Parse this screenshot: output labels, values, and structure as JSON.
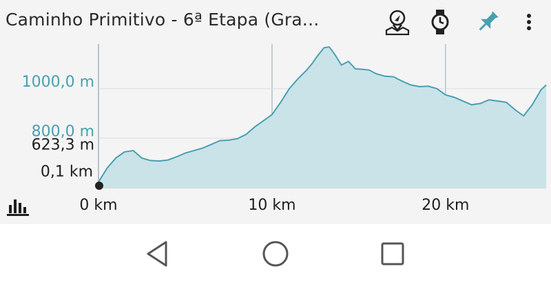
{
  "header": {
    "title": "Caminho Primitivo - 6ª Etapa (Gra...",
    "icons": [
      "map-navigation-icon",
      "watch-icon",
      "pin-icon",
      "more-vert-icon"
    ],
    "accent_color": "#4a9fb0"
  },
  "readout": {
    "elevation": "623,3 m",
    "distance": "0,1 km"
  },
  "chart_data": {
    "type": "area",
    "x": [
      0,
      0.5,
      1,
      1.5,
      2,
      2.5,
      3,
      3.5,
      4,
      4.5,
      5,
      5.5,
      6,
      6.5,
      7,
      7.5,
      8,
      8.5,
      9,
      9.5,
      10,
      10.5,
      11,
      11.5,
      12,
      12.3,
      12.6,
      13,
      13.3,
      13.6,
      14,
      14.4,
      14.8,
      15.2,
      15.6,
      16,
      16.5,
      17,
      17.5,
      18,
      18.5,
      19,
      19.5,
      20,
      20.5,
      21,
      21.5,
      22,
      22.5,
      23,
      23.5,
      24,
      24.5,
      25,
      25.5,
      25.8
    ],
    "values": [
      623,
      680,
      720,
      745,
      750,
      720,
      710,
      708,
      712,
      725,
      740,
      750,
      760,
      775,
      790,
      792,
      798,
      815,
      845,
      870,
      895,
      945,
      1000,
      1040,
      1075,
      1100,
      1130,
      1165,
      1168,
      1140,
      1095,
      1110,
      1080,
      1078,
      1075,
      1060,
      1050,
      1048,
      1030,
      1015,
      1008,
      1010,
      1000,
      975,
      965,
      950,
      935,
      940,
      955,
      950,
      945,
      915,
      890,
      935,
      995,
      1015
    ],
    "ylabels": [
      "1000,0 m",
      "800,0 m"
    ],
    "ytick_values": [
      1000,
      800
    ],
    "xlabels": [
      "0 km",
      "10 km",
      "20 km"
    ],
    "xtick_values": [
      0,
      10,
      20
    ],
    "xlim": [
      0,
      25.8
    ],
    "ylim": [
      600,
      1180
    ],
    "grid": true,
    "fill_color": "#c9e3e9",
    "line_color": "#4a9fb0",
    "label_color": "#4a9fb0"
  }
}
